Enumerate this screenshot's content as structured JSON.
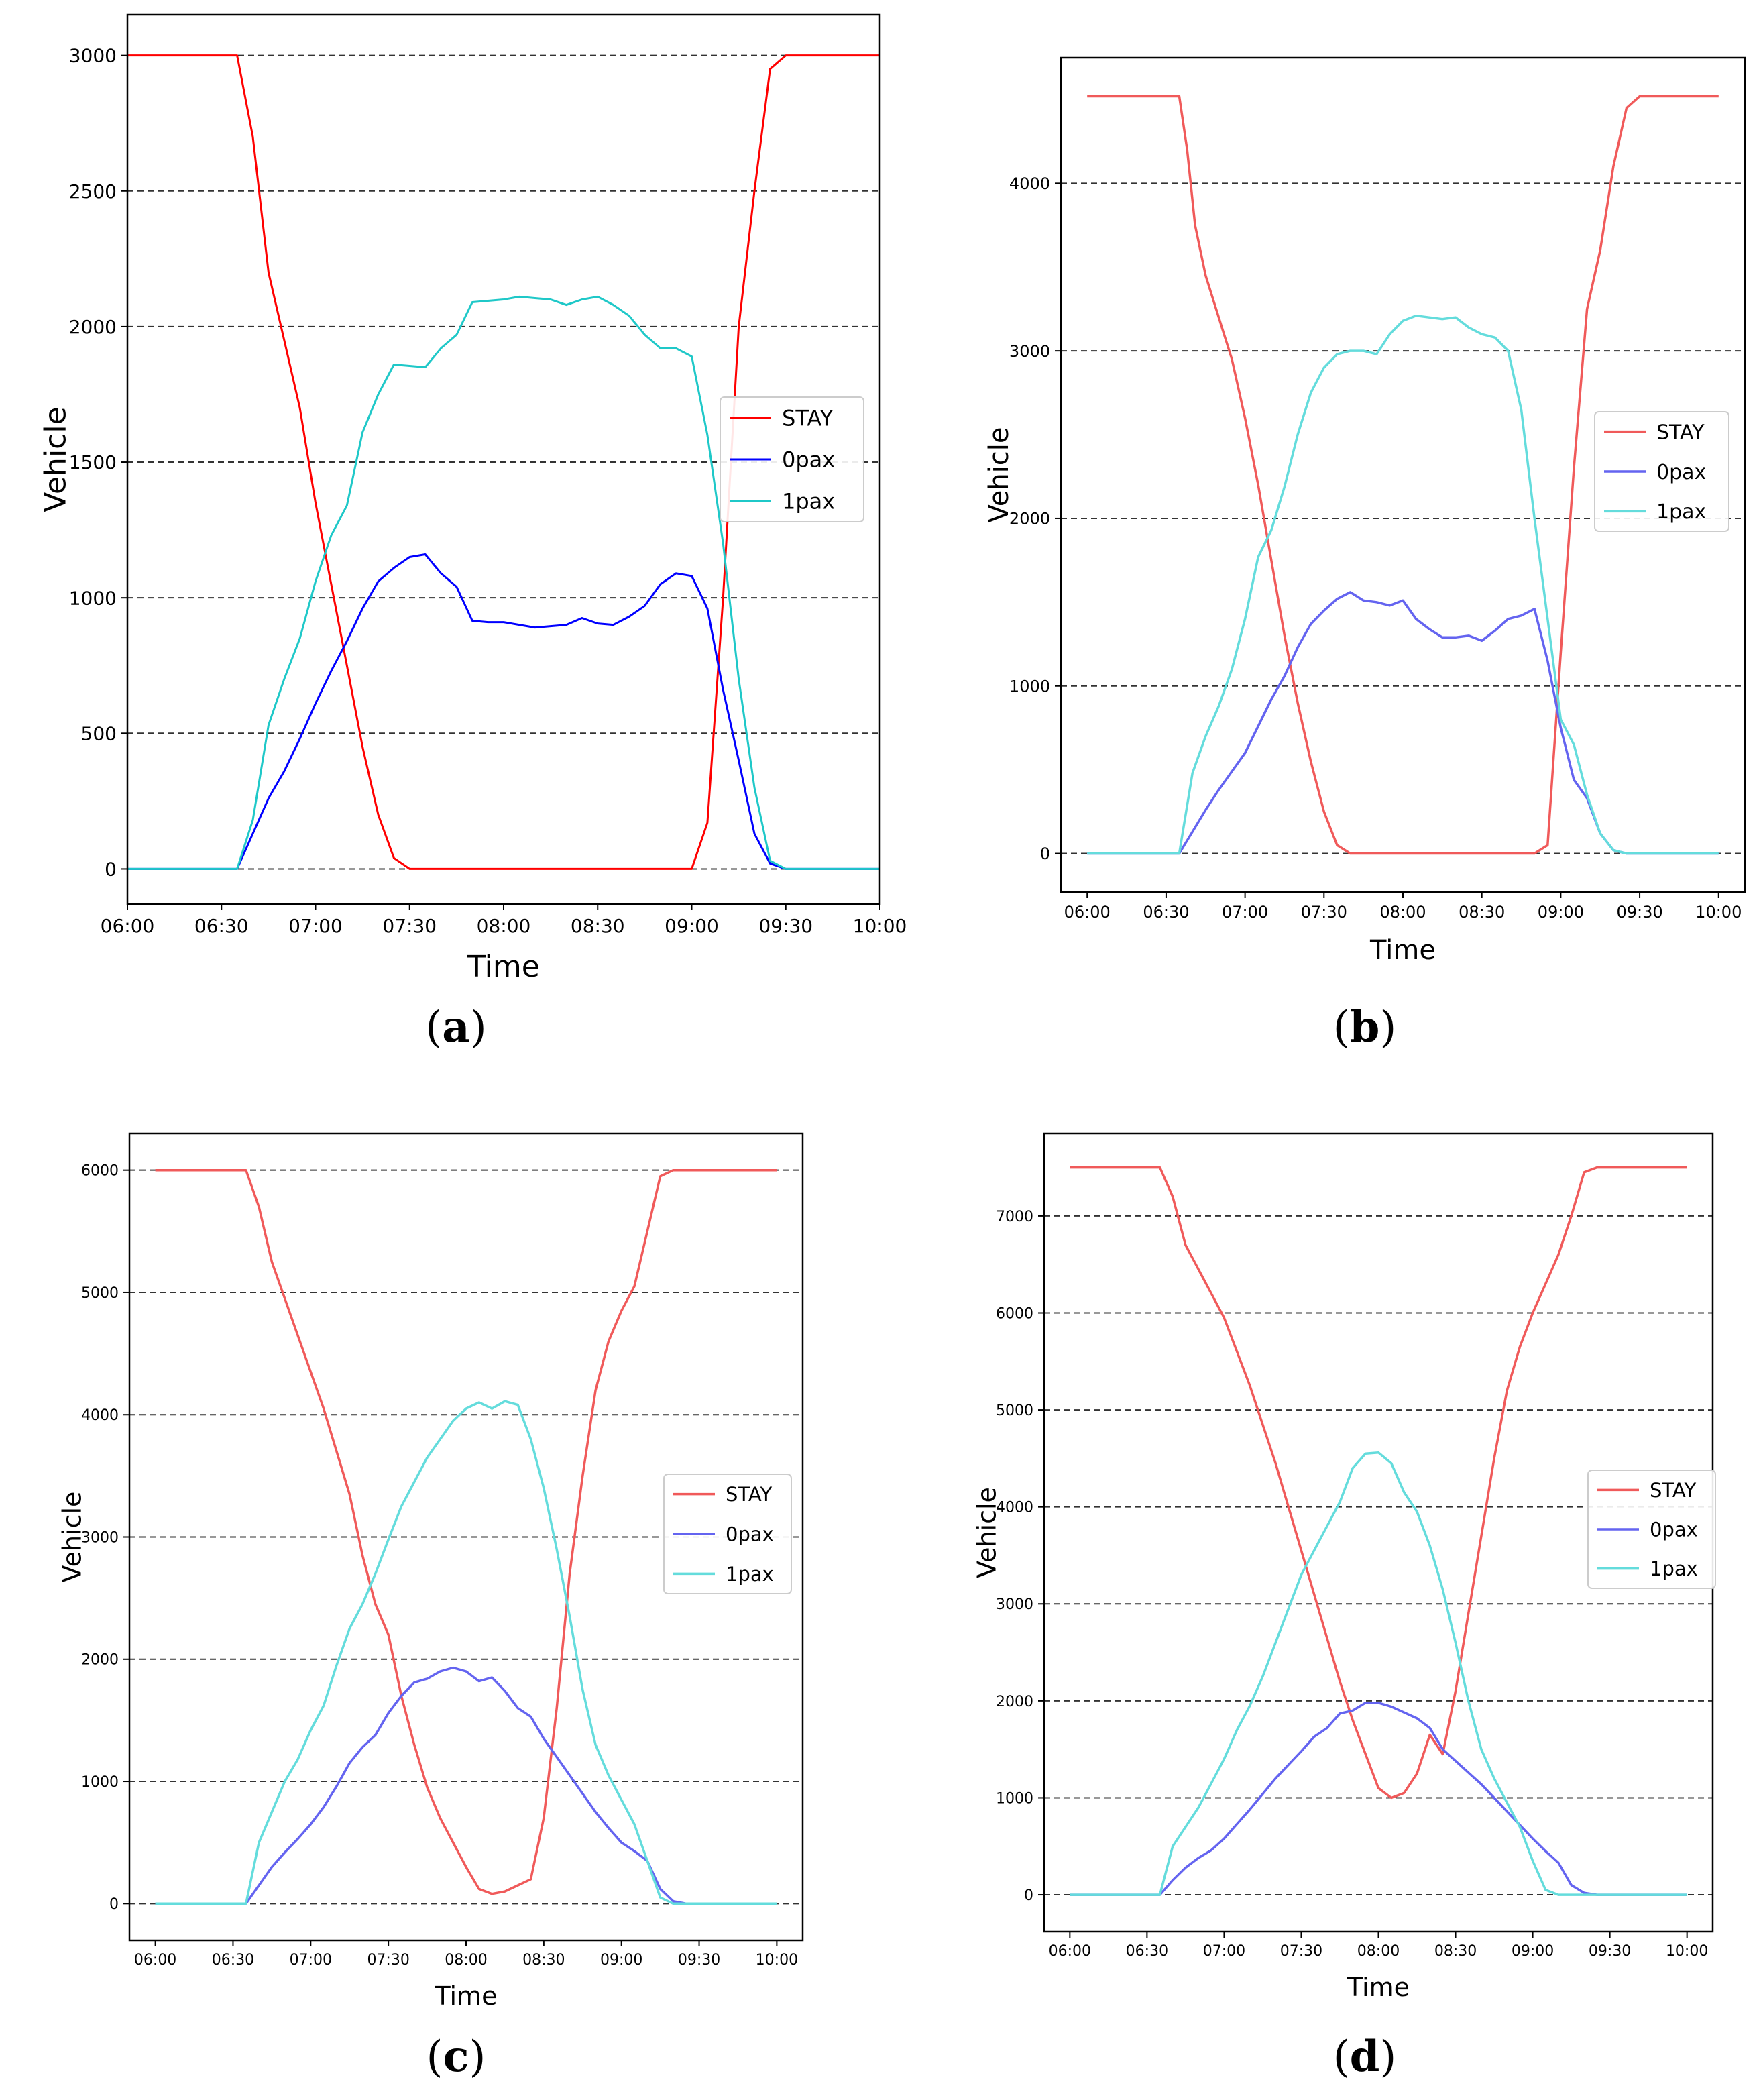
{
  "chart_data": [
    {
      "id": "a",
      "type": "line",
      "caption_letter": "a",
      "xlabel": "Time",
      "ylabel": "Vehicle",
      "xlim": [
        0,
        240
      ],
      "ylim": [
        -130,
        3150
      ],
      "yticks": [
        0,
        500,
        1000,
        1500,
        2000,
        2500,
        3000
      ],
      "ytick_labels": [
        "0",
        "500",
        "1000",
        "1500",
        "2000",
        "2500",
        "3000"
      ],
      "xticks": [
        0,
        30,
        60,
        90,
        120,
        150,
        180,
        210,
        240
      ],
      "xtick_labels": [
        "06:00",
        "06:30",
        "07:00",
        "07:30",
        "08:00",
        "08:30",
        "09:00",
        "09:30",
        "10:00"
      ],
      "grid": "horizontal-dashed",
      "legend_position": "center-right",
      "series": [
        {
          "name": "STAY",
          "color": "#ff0000",
          "x": [
            0,
            35,
            40,
            45,
            50,
            55,
            60,
            65,
            70,
            75,
            80,
            85,
            90,
            120,
            150,
            180,
            185,
            190,
            195,
            200,
            205,
            210,
            240
          ],
          "values": [
            3000,
            3000,
            2700,
            2200,
            1950,
            1700,
            1350,
            1050,
            750,
            450,
            200,
            40,
            0,
            0,
            0,
            0,
            170,
            1000,
            2000,
            2500,
            2950,
            3000,
            3000
          ]
        },
        {
          "name": "0pax",
          "color": "#0000ff",
          "x": [
            0,
            35,
            40,
            45,
            50,
            55,
            60,
            65,
            70,
            75,
            80,
            85,
            90,
            95,
            100,
            105,
            110,
            115,
            120,
            125,
            130,
            135,
            140,
            145,
            150,
            155,
            160,
            165,
            170,
            175,
            180,
            185,
            190,
            195,
            200,
            205,
            210,
            240
          ],
          "values": [
            0,
            0,
            130,
            260,
            360,
            480,
            610,
            730,
            840,
            960,
            1060,
            1110,
            1150,
            1160,
            1090,
            1040,
            915,
            910,
            910,
            900,
            890,
            895,
            900,
            925,
            905,
            900,
            930,
            970,
            1050,
            1090,
            1080,
            960,
            660,
            400,
            130,
            20,
            0,
            0
          ]
        },
        {
          "name": "1pax",
          "color": "#1fc8c8",
          "x": [
            0,
            35,
            40,
            45,
            50,
            55,
            60,
            65,
            70,
            75,
            80,
            85,
            90,
            95,
            100,
            105,
            110,
            115,
            120,
            125,
            130,
            135,
            140,
            145,
            150,
            155,
            160,
            165,
            170,
            175,
            180,
            185,
            190,
            195,
            200,
            205,
            210,
            240
          ],
          "values": [
            0,
            0,
            180,
            530,
            700,
            850,
            1060,
            1230,
            1340,
            1610,
            1750,
            1860,
            1855,
            1850,
            1920,
            1970,
            2090,
            2095,
            2100,
            2110,
            2105,
            2100,
            2080,
            2100,
            2110,
            2080,
            2040,
            1970,
            1920,
            1920,
            1890,
            1600,
            1200,
            700,
            300,
            30,
            0,
            0
          ]
        }
      ]
    },
    {
      "id": "b",
      "type": "line",
      "caption_letter": "b",
      "xlabel": "Time",
      "ylabel": "Vehicle",
      "xlim": [
        -10,
        250
      ],
      "ylim": [
        -230,
        4750
      ],
      "yticks": [
        0,
        1000,
        2000,
        3000,
        4000
      ],
      "ytick_labels": [
        "0",
        "1000",
        "2000",
        "3000",
        "4000"
      ],
      "xticks": [
        0,
        30,
        60,
        90,
        120,
        150,
        180,
        210,
        240
      ],
      "xtick_labels": [
        "06:00",
        "06:30",
        "07:00",
        "07:30",
        "08:00",
        "08:30",
        "09:00",
        "09:30",
        "10:00"
      ],
      "grid": "horizontal-dashed",
      "legend_position": "center-right",
      "series": [
        {
          "name": "STAY",
          "color": "#f05a5a",
          "x": [
            0,
            35,
            38,
            41,
            45,
            50,
            55,
            60,
            65,
            70,
            75,
            80,
            85,
            90,
            95,
            100,
            105,
            110,
            170,
            175,
            180,
            185,
            190,
            195,
            200,
            205,
            210,
            240
          ],
          "values": [
            4520,
            4520,
            4200,
            3750,
            3450,
            3200,
            2950,
            2600,
            2200,
            1750,
            1300,
            900,
            550,
            250,
            50,
            0,
            0,
            0,
            0,
            50,
            1200,
            2300,
            3250,
            3600,
            4100,
            4450,
            4520,
            4520
          ]
        },
        {
          "name": "0pax",
          "color": "#6464f0",
          "x": [
            0,
            35,
            40,
            45,
            50,
            55,
            60,
            65,
            70,
            75,
            80,
            85,
            90,
            95,
            100,
            105,
            110,
            115,
            120,
            125,
            130,
            135,
            140,
            145,
            150,
            155,
            160,
            165,
            170,
            175,
            180,
            185,
            190,
            195,
            200,
            205,
            210,
            240
          ],
          "values": [
            0,
            0,
            130,
            260,
            380,
            490,
            600,
            760,
            920,
            1060,
            1230,
            1370,
            1450,
            1520,
            1560,
            1510,
            1500,
            1480,
            1510,
            1400,
            1340,
            1290,
            1290,
            1300,
            1270,
            1330,
            1400,
            1420,
            1460,
            1150,
            750,
            440,
            330,
            120,
            20,
            0,
            0,
            0
          ]
        },
        {
          "name": "1pax",
          "color": "#64dcdc",
          "x": [
            0,
            35,
            40,
            45,
            50,
            55,
            60,
            65,
            70,
            75,
            80,
            85,
            90,
            95,
            100,
            105,
            110,
            115,
            120,
            125,
            130,
            135,
            140,
            145,
            150,
            155,
            160,
            165,
            170,
            175,
            180,
            185,
            190,
            195,
            200,
            205,
            210,
            240
          ],
          "values": [
            0,
            0,
            480,
            700,
            880,
            1100,
            1400,
            1770,
            1930,
            2190,
            2500,
            2750,
            2900,
            2980,
            3000,
            3000,
            2980,
            3100,
            3180,
            3210,
            3200,
            3190,
            3200,
            3140,
            3100,
            3080,
            3000,
            2650,
            2000,
            1400,
            800,
            650,
            350,
            120,
            20,
            0,
            0,
            0
          ]
        }
      ]
    },
    {
      "id": "c",
      "type": "line",
      "caption_letter": "c",
      "xlabel": "Time",
      "ylabel": "Vehicle",
      "xlim": [
        -10,
        250
      ],
      "ylim": [
        -300,
        6300
      ],
      "yticks": [
        0,
        1000,
        2000,
        3000,
        4000,
        5000,
        6000
      ],
      "ytick_labels": [
        "0",
        "1000",
        "2000",
        "3000",
        "4000",
        "5000",
        "6000"
      ],
      "xticks": [
        0,
        30,
        60,
        90,
        120,
        150,
        180,
        210,
        240
      ],
      "xtick_labels": [
        "06:00",
        "06:30",
        "07:00",
        "07:30",
        "08:00",
        "08:30",
        "09:00",
        "09:30",
        "10:00"
      ],
      "grid": "horizontal-dashed",
      "legend_position": "center-right",
      "series": [
        {
          "name": "STAY",
          "color": "#f05a5a",
          "x": [
            0,
            35,
            40,
            45,
            50,
            55,
            60,
            65,
            70,
            75,
            80,
            85,
            90,
            95,
            100,
            105,
            110,
            115,
            120,
            125,
            130,
            135,
            140,
            145,
            150,
            155,
            160,
            165,
            170,
            175,
            180,
            185,
            190,
            195,
            200,
            205,
            210,
            240
          ],
          "values": [
            6000,
            6000,
            5700,
            5250,
            4950,
            4650,
            4350,
            4050,
            3700,
            3350,
            2850,
            2450,
            2200,
            1700,
            1300,
            950,
            700,
            500,
            300,
            120,
            80,
            100,
            150,
            200,
            700,
            1600,
            2700,
            3500,
            4200,
            4600,
            4850,
            5050,
            5500,
            5950,
            6000,
            6000,
            6000,
            6000
          ]
        },
        {
          "name": "0pax",
          "color": "#6464f0",
          "x": [
            0,
            35,
            40,
            45,
            50,
            55,
            60,
            65,
            70,
            75,
            80,
            85,
            90,
            95,
            100,
            105,
            110,
            115,
            120,
            125,
            130,
            135,
            140,
            145,
            150,
            155,
            160,
            165,
            170,
            175,
            180,
            185,
            190,
            195,
            200,
            205,
            210,
            240
          ],
          "values": [
            0,
            0,
            150,
            300,
            420,
            530,
            650,
            790,
            960,
            1150,
            1280,
            1380,
            1560,
            1700,
            1810,
            1840,
            1900,
            1930,
            1900,
            1820,
            1850,
            1740,
            1600,
            1530,
            1350,
            1200,
            1050,
            900,
            750,
            620,
            500,
            430,
            350,
            120,
            20,
            0,
            0,
            0
          ]
        },
        {
          "name": "1pax",
          "color": "#64dcdc",
          "x": [
            0,
            35,
            40,
            45,
            50,
            55,
            60,
            65,
            70,
            75,
            80,
            85,
            90,
            95,
            100,
            105,
            110,
            115,
            120,
            125,
            130,
            135,
            140,
            145,
            150,
            155,
            160,
            165,
            170,
            175,
            180,
            185,
            190,
            195,
            200,
            205,
            210,
            240
          ],
          "values": [
            0,
            0,
            500,
            750,
            1000,
            1180,
            1420,
            1620,
            1950,
            2250,
            2450,
            2700,
            2980,
            3250,
            3450,
            3650,
            3800,
            3950,
            4050,
            4100,
            4050,
            4110,
            4080,
            3800,
            3400,
            2900,
            2350,
            1750,
            1300,
            1050,
            850,
            650,
            350,
            50,
            0,
            0,
            0,
            0
          ]
        }
      ]
    },
    {
      "id": "d",
      "type": "line",
      "caption_letter": "d",
      "xlabel": "Time",
      "ylabel": "Vehicle",
      "xlim": [
        -10,
        250
      ],
      "ylim": [
        -380,
        7850
      ],
      "yticks": [
        0,
        1000,
        2000,
        3000,
        4000,
        5000,
        6000,
        7000
      ],
      "ytick_labels": [
        "0",
        "1000",
        "2000",
        "3000",
        "4000",
        "5000",
        "6000",
        "7000"
      ],
      "xticks": [
        0,
        30,
        60,
        90,
        120,
        150,
        180,
        210,
        240
      ],
      "xtick_labels": [
        "06:00",
        "06:30",
        "07:00",
        "07:30",
        "08:00",
        "08:30",
        "09:00",
        "09:30",
        "10:00"
      ],
      "grid": "horizontal-dashed",
      "legend_position": "center-right",
      "series": [
        {
          "name": "STAY",
          "color": "#f05a5a",
          "x": [
            0,
            35,
            40,
            45,
            50,
            55,
            60,
            65,
            70,
            75,
            80,
            85,
            90,
            95,
            100,
            105,
            110,
            115,
            120,
            125,
            130,
            135,
            140,
            145,
            150,
            155,
            160,
            165,
            170,
            175,
            180,
            185,
            190,
            195,
            200,
            205,
            210,
            240
          ],
          "values": [
            7500,
            7500,
            7200,
            6700,
            6450,
            6200,
            5950,
            5600,
            5250,
            4850,
            4450,
            4000,
            3550,
            3100,
            2650,
            2200,
            1800,
            1450,
            1100,
            1000,
            1050,
            1250,
            1650,
            1450,
            2100,
            2900,
            3700,
            4500,
            5200,
            5650,
            6000,
            6300,
            6600,
            7000,
            7450,
            7500,
            7500,
            7500
          ]
        },
        {
          "name": "0pax",
          "color": "#6464f0",
          "x": [
            0,
            35,
            40,
            45,
            50,
            55,
            60,
            65,
            70,
            75,
            80,
            85,
            90,
            95,
            100,
            105,
            110,
            115,
            120,
            125,
            130,
            135,
            140,
            145,
            150,
            155,
            160,
            165,
            170,
            175,
            180,
            185,
            190,
            195,
            200,
            205,
            210,
            240
          ],
          "values": [
            0,
            0,
            150,
            280,
            380,
            460,
            580,
            730,
            880,
            1040,
            1200,
            1340,
            1480,
            1630,
            1720,
            1870,
            1900,
            1980,
            1980,
            1940,
            1880,
            1820,
            1720,
            1500,
            1380,
            1260,
            1140,
            1000,
            860,
            720,
            580,
            450,
            330,
            100,
            20,
            0,
            0,
            0
          ]
        },
        {
          "name": "1pax",
          "color": "#64dcdc",
          "x": [
            0,
            35,
            40,
            45,
            50,
            55,
            60,
            65,
            70,
            75,
            80,
            85,
            90,
            95,
            100,
            105,
            110,
            115,
            120,
            125,
            130,
            135,
            140,
            145,
            150,
            155,
            160,
            165,
            170,
            175,
            180,
            185,
            190,
            195,
            200,
            205,
            210,
            240
          ],
          "values": [
            0,
            0,
            500,
            700,
            900,
            1150,
            1400,
            1700,
            1950,
            2250,
            2600,
            2950,
            3300,
            3550,
            3800,
            4050,
            4400,
            4550,
            4560,
            4450,
            4150,
            3950,
            3600,
            3150,
            2600,
            2000,
            1500,
            1200,
            950,
            700,
            350,
            50,
            0,
            0,
            0,
            0,
            0,
            0
          ]
        }
      ]
    }
  ]
}
